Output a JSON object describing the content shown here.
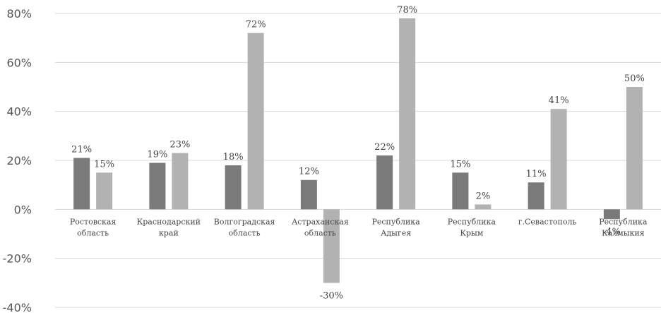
{
  "chart_data": {
    "type": "bar",
    "categories": [
      [
        "Ростовская",
        "область"
      ],
      [
        "Краснодарский",
        "край"
      ],
      [
        "Волгоградская",
        "область"
      ],
      [
        "Астраханская",
        "область"
      ],
      [
        "Республика",
        "Адыгея"
      ],
      [
        "Республика",
        "Крым"
      ],
      [
        "г.Севастополь"
      ],
      [
        "Республика",
        "Калмыкия"
      ]
    ],
    "series": [
      {
        "values": [
          21,
          19,
          18,
          12,
          22,
          15,
          11,
          -4
        ],
        "labels": [
          "21%",
          "19%",
          "18%",
          "12%",
          "22%",
          "15%",
          "11%",
          "-4%"
        ]
      },
      {
        "values": [
          15,
          23,
          72,
          -30,
          78,
          2,
          41,
          50
        ],
        "labels": [
          "15%",
          "23%",
          "72%",
          "-30%",
          "78%",
          "2%",
          "41%",
          "50%"
        ]
      }
    ],
    "ylim": [
      -40,
      80
    ],
    "yticks": [
      -40,
      -20,
      0,
      20,
      40,
      60,
      80
    ],
    "ytick_labels": [
      "-40%",
      "-20%",
      "0%",
      "20%",
      "40%",
      "60%",
      "80%"
    ],
    "grid": true,
    "colors": [
      "#7a7a7a",
      "#b2b2b2"
    ]
  }
}
